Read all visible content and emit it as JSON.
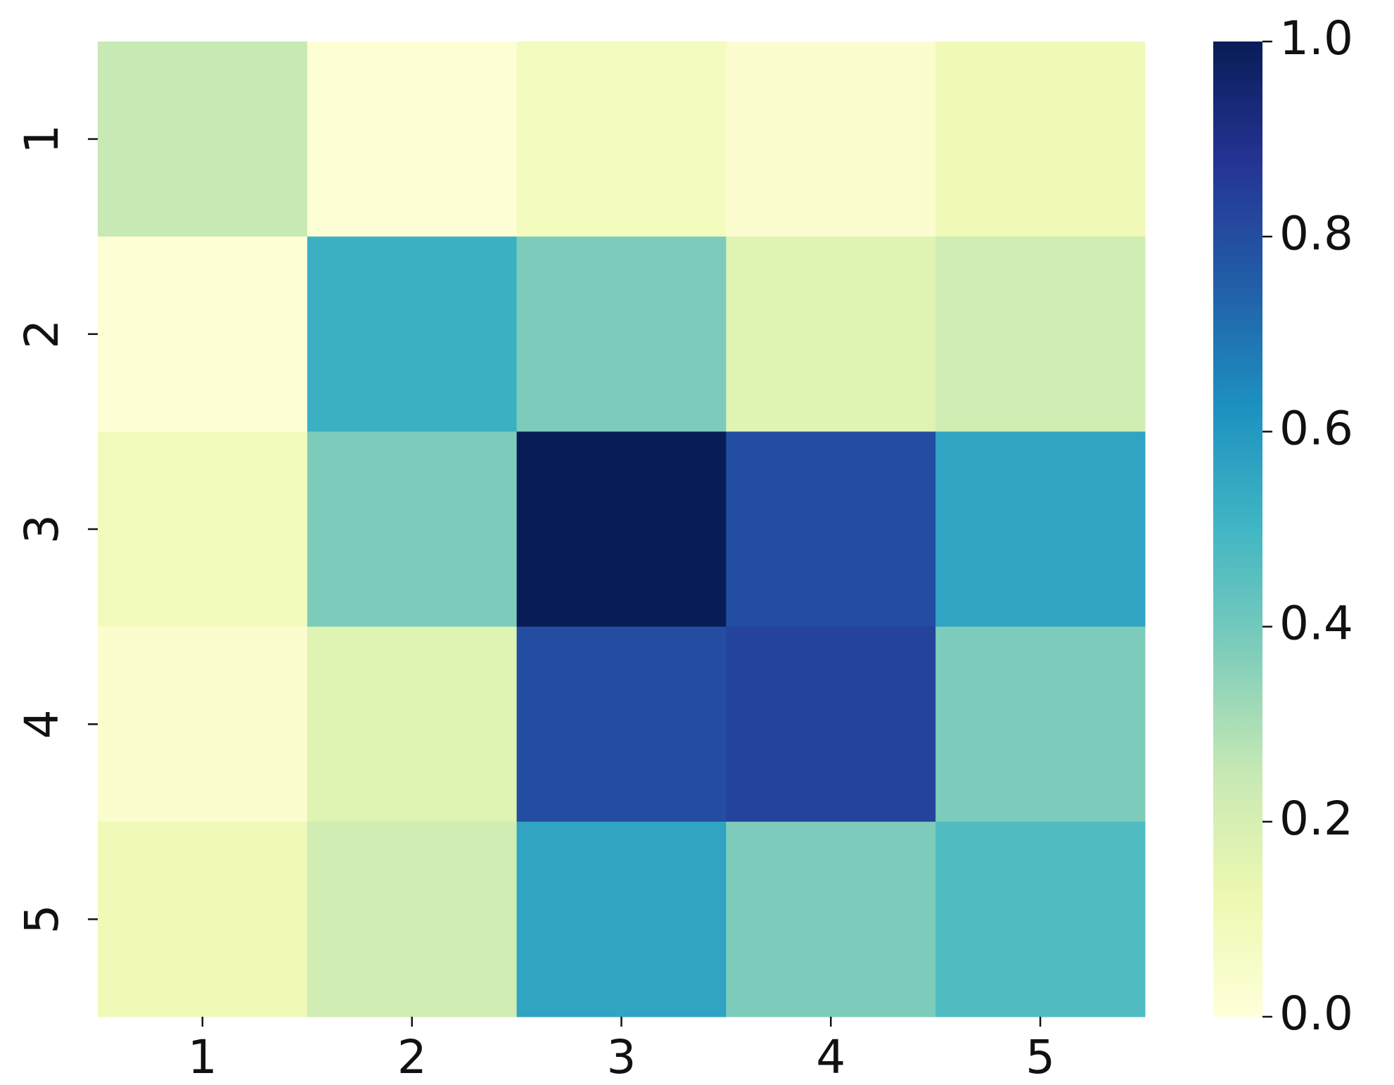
{
  "chart_data": {
    "type": "heatmap",
    "x": [
      "1",
      "2",
      "3",
      "4",
      "5"
    ],
    "y": [
      "1",
      "2",
      "3",
      "4",
      "5"
    ],
    "z": [
      [
        0.25,
        0.01,
        0.08,
        0.03,
        0.1
      ],
      [
        0.01,
        0.52,
        0.38,
        0.17,
        0.22
      ],
      [
        0.09,
        0.38,
        1.0,
        0.8,
        0.56
      ],
      [
        0.03,
        0.17,
        0.8,
        0.83,
        0.38
      ],
      [
        0.1,
        0.22,
        0.56,
        0.38,
        0.47
      ]
    ],
    "colorscale": [
      "#ffffd9",
      "#edf8b1",
      "#c7e9b4",
      "#7fcdbb",
      "#41b6c4",
      "#1d91c0",
      "#225ea8",
      "#253494",
      "#081d58"
    ],
    "zlim": [
      0,
      1
    ],
    "zticks": [
      {
        "value": 0,
        "label": "0.0"
      },
      0.2,
      0.4,
      0.6,
      0.8,
      {
        "value": 1,
        "label": "1.0"
      }
    ]
  }
}
